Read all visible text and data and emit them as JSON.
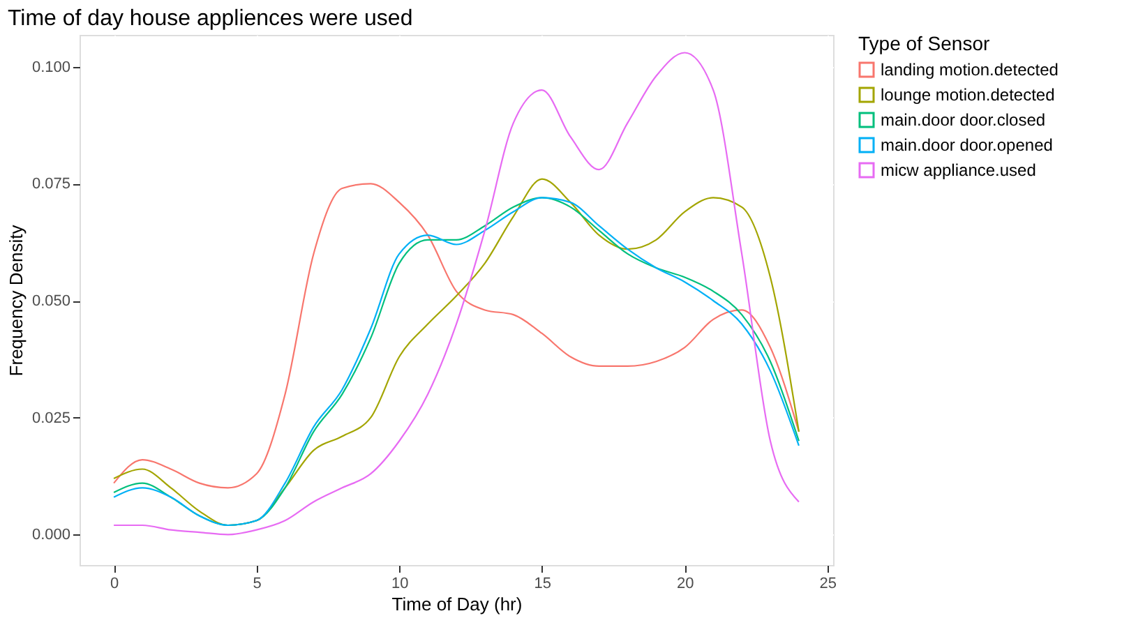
{
  "chart_data": {
    "type": "line",
    "title": "Time of day house appliences were used",
    "xlabel": "Time of Day (hr)",
    "ylabel": "Frequency Density",
    "legend_title": "Type of Sensor",
    "x": [
      0,
      1,
      2,
      3,
      4,
      5,
      6,
      7,
      8,
      9,
      10,
      11,
      12,
      13,
      14,
      15,
      16,
      17,
      18,
      19,
      20,
      21,
      22,
      23,
      24
    ],
    "series": [
      {
        "name": "landing motion.detected",
        "color": "#f8766d",
        "values": [
          0.011,
          0.016,
          0.014,
          0.011,
          0.01,
          0.013,
          0.03,
          0.06,
          0.074,
          0.075,
          0.071,
          0.064,
          0.052,
          0.048,
          0.047,
          0.043,
          0.038,
          0.036,
          0.036,
          0.037,
          0.04,
          0.046,
          0.048,
          0.04,
          0.022
        ]
      },
      {
        "name": "lounge motion.detected",
        "color": "#a3a500",
        "values": [
          0.012,
          0.014,
          0.01,
          0.005,
          0.002,
          0.003,
          0.01,
          0.018,
          0.021,
          0.025,
          0.038,
          0.045,
          0.051,
          0.058,
          0.068,
          0.076,
          0.071,
          0.064,
          0.061,
          0.063,
          0.069,
          0.072,
          0.07,
          0.055,
          0.022
        ]
      },
      {
        "name": "main.door door.closed",
        "color": "#00bf7d",
        "values": [
          0.009,
          0.011,
          0.008,
          0.004,
          0.002,
          0.003,
          0.01,
          0.022,
          0.03,
          0.042,
          0.058,
          0.063,
          0.063,
          0.066,
          0.07,
          0.072,
          0.07,
          0.065,
          0.06,
          0.057,
          0.055,
          0.052,
          0.047,
          0.037,
          0.02
        ]
      },
      {
        "name": "main.door door.opened",
        "color": "#00b0f6",
        "values": [
          0.008,
          0.01,
          0.008,
          0.004,
          0.002,
          0.003,
          0.011,
          0.023,
          0.031,
          0.044,
          0.06,
          0.064,
          0.062,
          0.065,
          0.069,
          0.072,
          0.071,
          0.066,
          0.061,
          0.057,
          0.054,
          0.05,
          0.045,
          0.035,
          0.019
        ]
      },
      {
        "name": "micw appliance.used",
        "color": "#e76bf3",
        "values": [
          0.002,
          0.002,
          0.001,
          0.0005,
          0,
          0.001,
          0.003,
          0.007,
          0.01,
          0.013,
          0.02,
          0.03,
          0.045,
          0.065,
          0.088,
          0.095,
          0.085,
          0.078,
          0.088,
          0.098,
          0.103,
          0.095,
          0.06,
          0.02,
          0.007
        ]
      }
    ],
    "xlim": [
      -1.2,
      25.2
    ],
    "xticks": [
      0,
      5,
      10,
      15,
      20,
      25
    ],
    "ylim": [
      -0.0065,
      0.1068
    ],
    "yticks": [
      {
        "value": 0,
        "label": "0.000"
      },
      0.025,
      {
        "value": 0.05,
        "label": "0.050"
      },
      0.075,
      {
        "value": 0.1,
        "label": "0.100"
      }
    ],
    "grid": true,
    "legend": "right",
    "line_style": "solid",
    "marker": "none"
  }
}
